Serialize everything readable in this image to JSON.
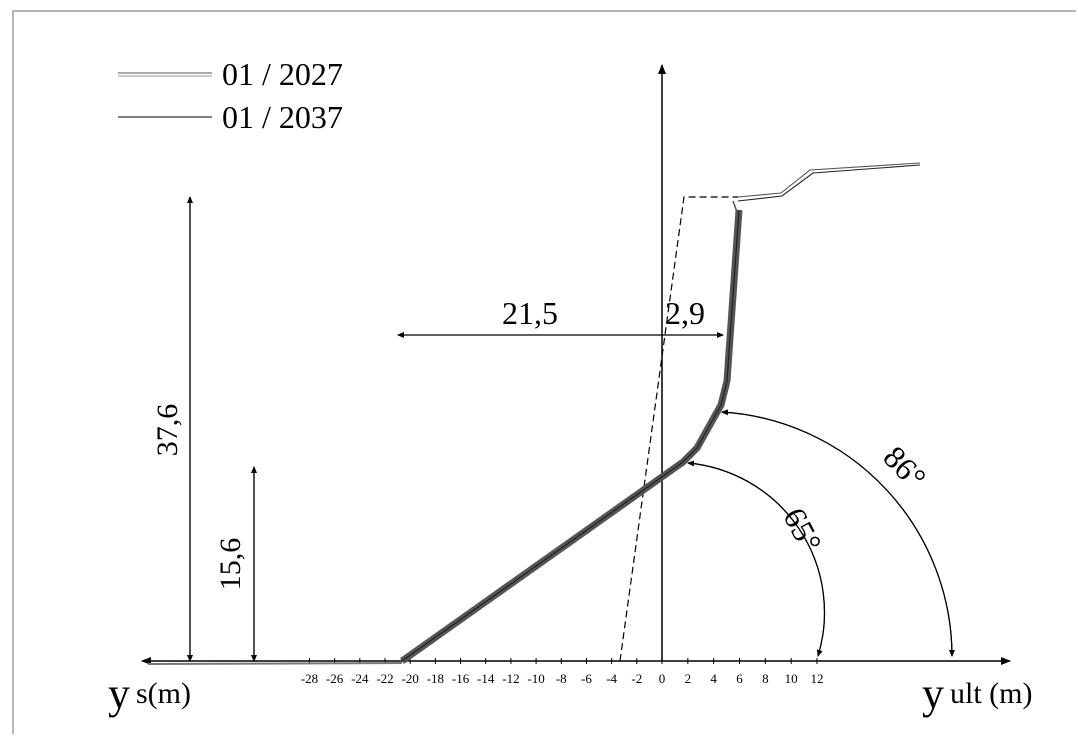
{
  "legend": [
    {
      "label": "01 / 2027",
      "style": "double-line"
    },
    {
      "label": "01 / 2037",
      "style": "single-line"
    }
  ],
  "axes": {
    "left_label_main": "y",
    "left_label_sub": "s(m)",
    "right_label_main": "y",
    "right_label_sub": "ult (m)",
    "tick_labels": [
      "-28",
      "-26",
      "-24",
      "-22",
      "-20",
      "-18",
      "-16",
      "-14",
      "-12",
      "-10",
      "-8",
      "-6",
      "-4",
      "-2",
      "0",
      "2",
      "4",
      "6",
      "8",
      "10",
      "12"
    ]
  },
  "dimensions": {
    "height_total": "37,6",
    "height_lower": "15,6",
    "offset_left": "21,5",
    "offset_right": "2,9"
  },
  "angles": {
    "angle_small": "65°",
    "angle_large": "86°"
  },
  "colors": {
    "line": "#000000",
    "thick_band": "#555555",
    "legend_line": "#777777",
    "border": "#b5b5b5"
  }
}
